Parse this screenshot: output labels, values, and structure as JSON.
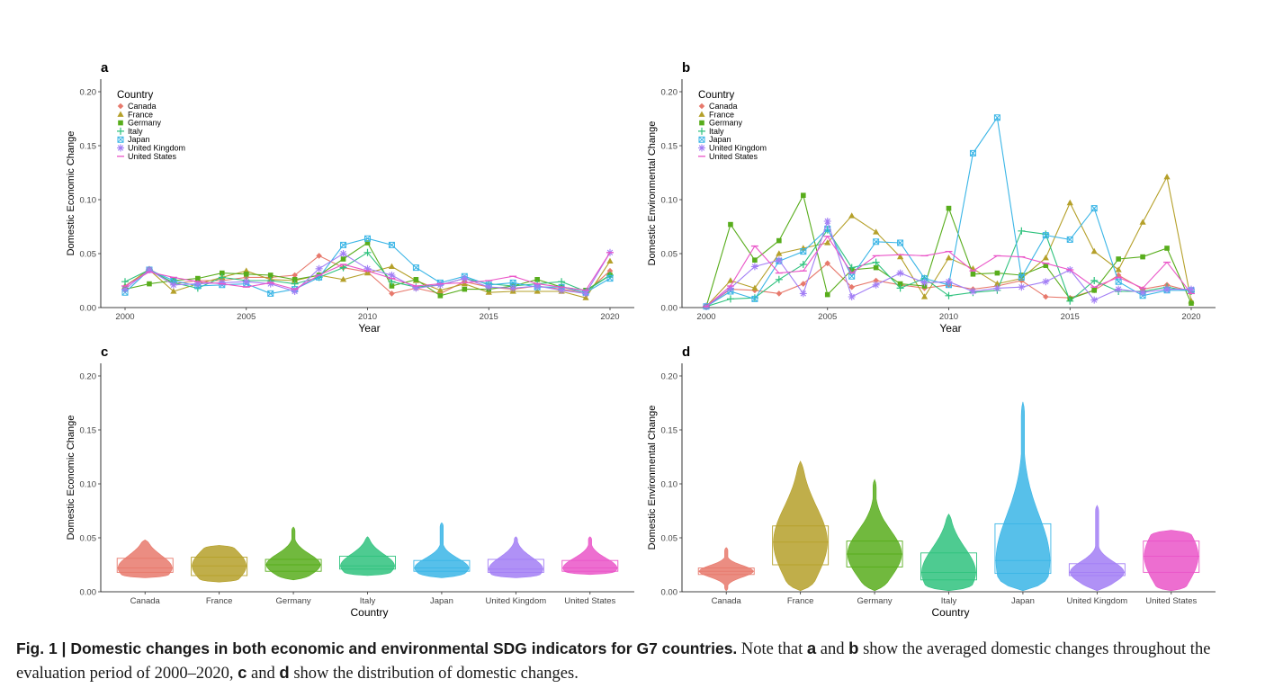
{
  "countries": [
    "Canada",
    "France",
    "Germany",
    "Italy",
    "Japan",
    "United Kingdom",
    "United States"
  ],
  "colors": {
    "Canada": "#e7796c",
    "France": "#b5a02a",
    "Germany": "#58ad1c",
    "Italy": "#2fc27e",
    "Japan": "#3ab5e6",
    "United Kingdom": "#a27ef5",
    "United States": "#ea55c8"
  },
  "markers": {
    "Canada": "diamond",
    "France": "triangle",
    "Germany": "square",
    "Italy": "plus",
    "Japan": "boxx",
    "United Kingdom": "asterisk",
    "United States": "dash"
  },
  "chart_data": [
    {
      "panel": "a",
      "type": "line",
      "xlabel": "Year",
      "ylabel": "Domestic Economic Change",
      "legend_title": "Country",
      "legend": "top-left",
      "xlim": [
        2000,
        2020
      ],
      "ylim": [
        0,
        0.2
      ],
      "xticks": [
        2000,
        2005,
        2010,
        2015,
        2020
      ],
      "yticks": [
        "0.00",
        "0.05",
        "0.10",
        "0.15",
        "0.20"
      ],
      "x": [
        2000,
        2001,
        2002,
        2003,
        2004,
        2005,
        2006,
        2007,
        2008,
        2009,
        2010,
        2011,
        2012,
        2013,
        2014,
        2015,
        2016,
        2017,
        2018,
        2019,
        2020
      ],
      "series": [
        {
          "name": "Canada",
          "values": [
            0.019,
            0.036,
            0.022,
            0.025,
            0.025,
            0.028,
            0.028,
            0.03,
            0.048,
            0.037,
            0.033,
            0.013,
            0.018,
            0.013,
            0.024,
            0.019,
            0.017,
            0.02,
            0.017,
            0.014,
            0.034
          ]
        },
        {
          "name": "France",
          "values": [
            0.02,
            0.035,
            0.015,
            0.022,
            0.028,
            0.034,
            0.026,
            0.025,
            0.03,
            0.026,
            0.032,
            0.038,
            0.025,
            0.016,
            0.022,
            0.014,
            0.015,
            0.015,
            0.015,
            0.009,
            0.043
          ]
        },
        {
          "name": "Germany",
          "values": [
            0.017,
            0.022,
            0.025,
            0.027,
            0.032,
            0.031,
            0.03,
            0.026,
            0.03,
            0.045,
            0.06,
            0.02,
            0.026,
            0.011,
            0.017,
            0.017,
            0.02,
            0.026,
            0.019,
            0.016,
            0.03
          ]
        },
        {
          "name": "Italy",
          "values": [
            0.024,
            0.035,
            0.023,
            0.018,
            0.028,
            0.025,
            0.025,
            0.022,
            0.028,
            0.037,
            0.051,
            0.024,
            0.019,
            0.021,
            0.027,
            0.022,
            0.02,
            0.022,
            0.024,
            0.015,
            0.03
          ]
        },
        {
          "name": "Japan",
          "values": [
            0.014,
            0.035,
            0.025,
            0.02,
            0.021,
            0.022,
            0.013,
            0.017,
            0.028,
            0.058,
            0.064,
            0.058,
            0.037,
            0.023,
            0.029,
            0.021,
            0.023,
            0.019,
            0.019,
            0.014,
            0.027
          ]
        },
        {
          "name": "United Kingdom",
          "values": [
            0.017,
            0.035,
            0.021,
            0.022,
            0.023,
            0.024,
            0.022,
            0.015,
            0.036,
            0.05,
            0.036,
            0.03,
            0.018,
            0.021,
            0.027,
            0.019,
            0.018,
            0.02,
            0.016,
            0.013,
            0.051
          ]
        },
        {
          "name": "United States",
          "values": [
            0.02,
            0.033,
            0.028,
            0.024,
            0.022,
            0.019,
            0.023,
            0.017,
            0.03,
            0.04,
            0.034,
            0.027,
            0.02,
            0.022,
            0.023,
            0.025,
            0.029,
            0.022,
            0.019,
            0.016,
            0.051
          ]
        }
      ]
    },
    {
      "panel": "b",
      "type": "line",
      "xlabel": "Year",
      "ylabel": "Domestic Environmental Change",
      "legend_title": "Country",
      "legend": "top-left",
      "xlim": [
        2000,
        2020
      ],
      "ylim": [
        0,
        0.2
      ],
      "xticks": [
        2000,
        2005,
        2010,
        2015,
        2020
      ],
      "yticks": [
        "0.00",
        "0.05",
        "0.10",
        "0.15",
        "0.20"
      ],
      "x": [
        2000,
        2001,
        2002,
        2003,
        2004,
        2005,
        2006,
        2007,
        2008,
        2009,
        2010,
        2011,
        2012,
        2013,
        2014,
        2015,
        2016,
        2017,
        2018,
        2019,
        2020
      ],
      "series": [
        {
          "name": "Canada",
          "values": [
            0.001,
            0.017,
            0.016,
            0.013,
            0.022,
            0.041,
            0.019,
            0.025,
            0.021,
            0.018,
            0.021,
            0.017,
            0.02,
            0.025,
            0.01,
            0.009,
            0.016,
            0.03,
            0.017,
            0.021,
            0.015
          ]
        },
        {
          "name": "France",
          "values": [
            0.001,
            0.025,
            0.018,
            0.05,
            0.055,
            0.06,
            0.085,
            0.07,
            0.047,
            0.01,
            0.046,
            0.036,
            0.022,
            0.027,
            0.046,
            0.097,
            0.052,
            0.035,
            0.079,
            0.121,
            0.006
          ]
        },
        {
          "name": "Germany",
          "values": [
            0.001,
            0.077,
            0.044,
            0.062,
            0.104,
            0.012,
            0.035,
            0.037,
            0.022,
            0.02,
            0.092,
            0.031,
            0.032,
            0.03,
            0.039,
            0.008,
            0.016,
            0.045,
            0.047,
            0.055,
            0.004
          ]
        },
        {
          "name": "Italy",
          "values": [
            0.001,
            0.008,
            0.009,
            0.026,
            0.04,
            0.072,
            0.037,
            0.042,
            0.018,
            0.027,
            0.011,
            0.014,
            0.016,
            0.071,
            0.068,
            0.006,
            0.025,
            0.015,
            0.015,
            0.019,
            0.015
          ]
        },
        {
          "name": "Japan",
          "values": [
            0.001,
            0.015,
            0.008,
            0.043,
            0.052,
            0.073,
            0.029,
            0.061,
            0.06,
            0.027,
            0.021,
            0.143,
            0.176,
            0.028,
            0.067,
            0.063,
            0.092,
            0.024,
            0.011,
            0.016,
            0.016
          ]
        },
        {
          "name": "United Kingdom",
          "values": [
            0.001,
            0.018,
            0.038,
            0.044,
            0.013,
            0.08,
            0.01,
            0.021,
            0.032,
            0.023,
            0.024,
            0.015,
            0.018,
            0.019,
            0.024,
            0.035,
            0.007,
            0.017,
            0.014,
            0.017,
            0.017
          ]
        },
        {
          "name": "United States",
          "values": [
            0.001,
            0.02,
            0.057,
            0.032,
            0.034,
            0.066,
            0.032,
            0.048,
            0.049,
            0.048,
            0.052,
            0.034,
            0.048,
            0.047,
            0.041,
            0.035,
            0.019,
            0.028,
            0.018,
            0.042,
            0.013
          ]
        }
      ]
    },
    {
      "panel": "c",
      "type": "violin",
      "xlabel": "Country",
      "ylabel": "Domestic Economic Change",
      "ylim": [
        0,
        0.2
      ],
      "yticks": [
        "0.00",
        "0.05",
        "0.10",
        "0.15",
        "0.20"
      ],
      "categories": [
        "Canada",
        "France",
        "Germany",
        "Italy",
        "Japan",
        "United Kingdom",
        "United States"
      ],
      "boxes": [
        {
          "name": "Canada",
          "q1": 0.018,
          "median": 0.022,
          "q3": 0.031,
          "min": 0.013,
          "max": 0.048
        },
        {
          "name": "France",
          "q1": 0.015,
          "median": 0.024,
          "q3": 0.032,
          "min": 0.009,
          "max": 0.043
        },
        {
          "name": "Germany",
          "q1": 0.019,
          "median": 0.025,
          "q3": 0.03,
          "min": 0.011,
          "max": 0.06
        },
        {
          "name": "Italy",
          "q1": 0.021,
          "median": 0.024,
          "q3": 0.033,
          "min": 0.015,
          "max": 0.051
        },
        {
          "name": "Japan",
          "q1": 0.019,
          "median": 0.022,
          "q3": 0.029,
          "min": 0.013,
          "max": 0.064
        },
        {
          "name": "United Kingdom",
          "q1": 0.018,
          "median": 0.021,
          "q3": 0.03,
          "min": 0.013,
          "max": 0.051
        },
        {
          "name": "United States",
          "q1": 0.019,
          "median": 0.022,
          "q3": 0.029,
          "min": 0.016,
          "max": 0.051
        }
      ]
    },
    {
      "panel": "d",
      "type": "violin",
      "xlabel": "Country",
      "ylabel": "Domestic Environmental Change",
      "ylim": [
        0,
        0.2
      ],
      "yticks": [
        "0.00",
        "0.05",
        "0.10",
        "0.15",
        "0.20"
      ],
      "categories": [
        "Canada",
        "France",
        "Germany",
        "Italy",
        "Japan",
        "United Kingdom",
        "United States"
      ],
      "boxes": [
        {
          "name": "Canada",
          "q1": 0.016,
          "median": 0.019,
          "q3": 0.022,
          "min": 0.001,
          "max": 0.041
        },
        {
          "name": "France",
          "q1": 0.025,
          "median": 0.046,
          "q3": 0.061,
          "min": 0.001,
          "max": 0.121
        },
        {
          "name": "Germany",
          "q1": 0.023,
          "median": 0.035,
          "q3": 0.047,
          "min": 0.001,
          "max": 0.104
        },
        {
          "name": "Italy",
          "q1": 0.011,
          "median": 0.018,
          "q3": 0.036,
          "min": 0.001,
          "max": 0.072
        },
        {
          "name": "Japan",
          "q1": 0.017,
          "median": 0.029,
          "q3": 0.063,
          "min": 0.001,
          "max": 0.176
        },
        {
          "name": "United Kingdom",
          "q1": 0.015,
          "median": 0.018,
          "q3": 0.026,
          "min": 0.001,
          "max": 0.08
        },
        {
          "name": "United States",
          "q1": 0.018,
          "median": 0.033,
          "q3": 0.047,
          "min": 0.001,
          "max": 0.057
        }
      ]
    }
  ],
  "caption": {
    "lead": "Fig. 1 | Domestic changes in both economic and environmental SDG indicators for G7 countries.",
    "t1": " Note that ",
    "a": "a",
    "t2": " and ",
    "b": "b",
    "t3": " show the averaged domestic changes throughout the evaluation period of 2000–2020, ",
    "c": "c",
    "t4": " and ",
    "d": "d",
    "t5": " show the distribution of domestic changes."
  }
}
